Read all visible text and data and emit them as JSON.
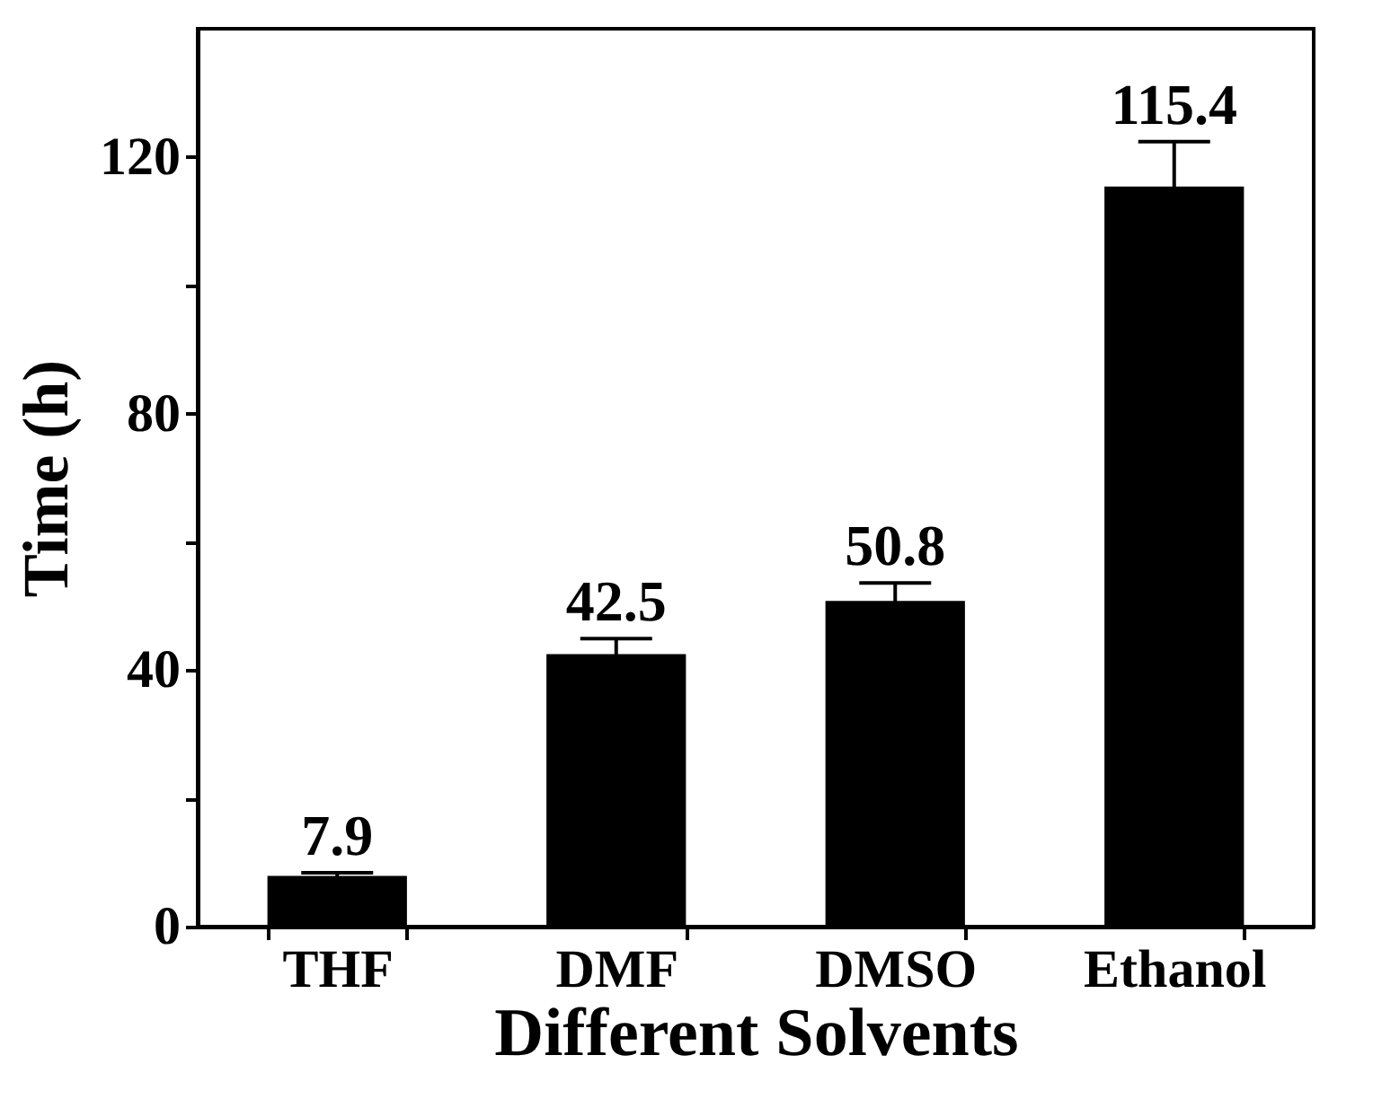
{
  "chart_data": {
    "type": "bar",
    "xlabel": "Different Solvents",
    "ylabel": "Time (h)",
    "categories": [
      "THF",
      "DMF",
      "DMSO",
      "Ethanol"
    ],
    "values": [
      7.9,
      42.5,
      50.8,
      115.4
    ],
    "errors": [
      0.5,
      2.4,
      2.8,
      7
    ],
    "color": "#000000",
    "ylim": [
      0,
      140
    ],
    "yticks": [
      0,
      {
        "value": 20,
        "label": null
      },
      40,
      {
        "value": 60,
        "label": null
      },
      80,
      {
        "value": 100,
        "label": null
      },
      120
    ],
    "data_labels": true,
    "grid": false
  }
}
